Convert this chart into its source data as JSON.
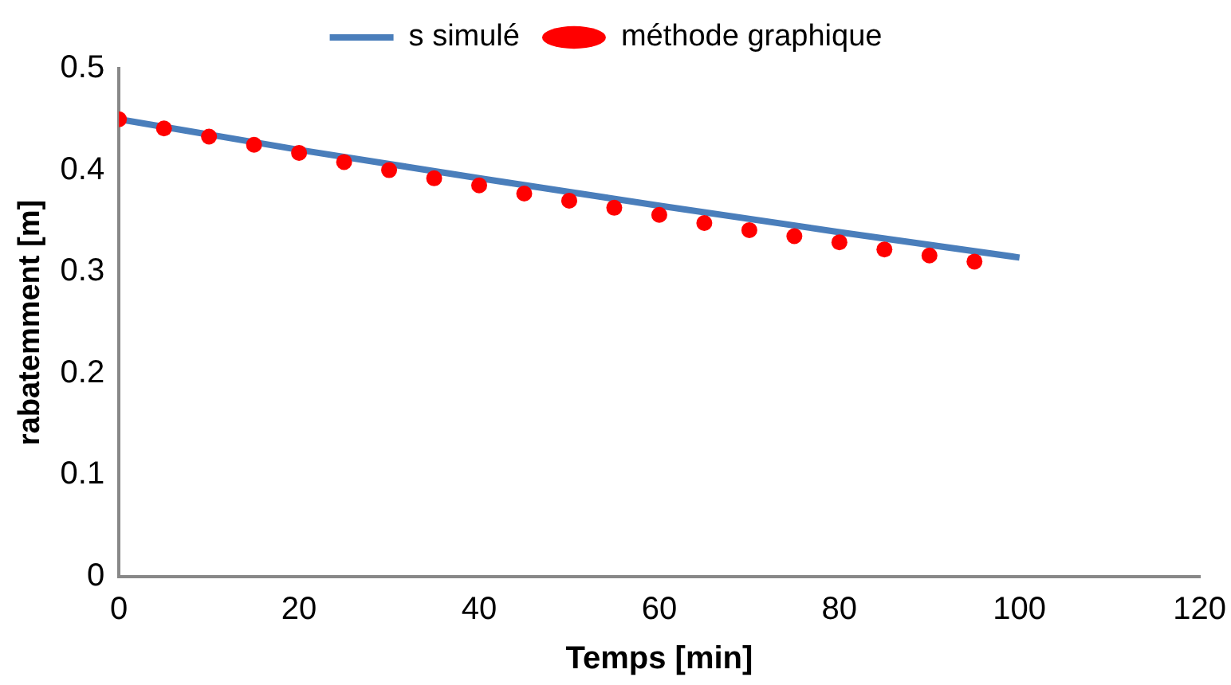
{
  "chart_data": {
    "type": "line",
    "xlabel": "Temps [min]",
    "ylabel": "rabatemment [m]",
    "xlim": [
      0,
      120
    ],
    "xticks": [
      0,
      20,
      40,
      60,
      80,
      100,
      120
    ],
    "ylim": [
      0,
      0.5
    ],
    "yticks": [
      0,
      0.1,
      0.2,
      0.3,
      0.4,
      0.5
    ],
    "grid": false,
    "legend": "top",
    "series": [
      {
        "name": "s simulé",
        "color": "#4a7ebb",
        "marker": "none",
        "x": [
          0,
          20,
          40,
          60,
          80,
          100
        ],
        "values": [
          0.45,
          0.42,
          0.392,
          0.365,
          0.339,
          0.314
        ]
      },
      {
        "name": "méthode graphique",
        "type": "scatter",
        "color": "#ff0000",
        "marker": "circle",
        "x": [
          0,
          5,
          10,
          15,
          20,
          25,
          30,
          35,
          40,
          45,
          50,
          55,
          60,
          65,
          70,
          75,
          80,
          85,
          90,
          95
        ],
        "values": [
          0.45,
          0.441,
          0.433,
          0.425,
          0.417,
          0.408,
          0.4,
          0.392,
          0.385,
          0.377,
          0.37,
          0.363,
          0.356,
          0.348,
          0.341,
          0.335,
          0.329,
          0.322,
          0.316,
          0.31
        ]
      }
    ]
  }
}
